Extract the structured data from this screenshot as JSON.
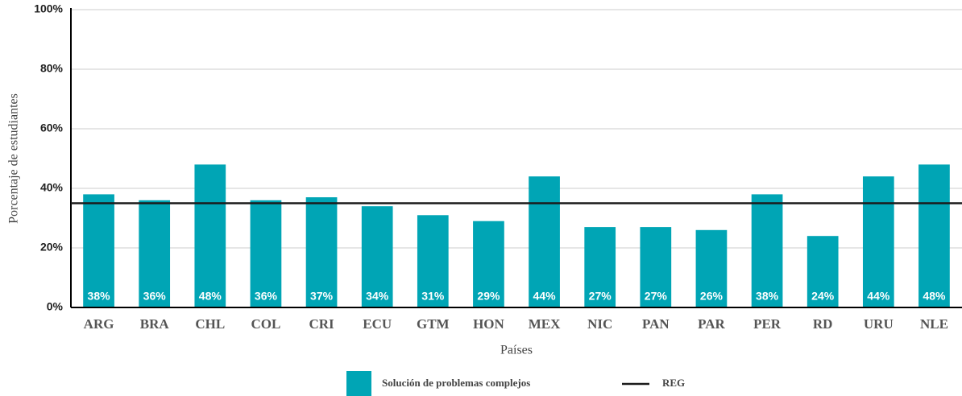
{
  "chart_data": {
    "type": "bar",
    "categories": [
      "ARG",
      "BRA",
      "CHL",
      "COL",
      "CRI",
      "ECU",
      "GTM",
      "HON",
      "MEX",
      "NIC",
      "PAN",
      "PAR",
      "PER",
      "RD",
      "URU",
      "NLE"
    ],
    "series": [
      {
        "name": "Solución de problemas complejos",
        "color": "#00a5b5",
        "values": [
          38,
          36,
          48,
          36,
          37,
          34,
          31,
          29,
          44,
          27,
          27,
          26,
          38,
          24,
          44,
          48
        ],
        "value_labels": [
          "38%",
          "36%",
          "48%",
          "36%",
          "37%",
          "34%",
          "31%",
          "29%",
          "44%",
          "27%",
          "27%",
          "26%",
          "38%",
          "24%",
          "44%",
          "48%"
        ]
      }
    ],
    "reference_line": {
      "name": "REG",
      "value": 35,
      "color": "#1a1a1a"
    },
    "ylabel": "Porcentaje de estudiantes",
    "xlabel": "Países",
    "ylim": [
      0,
      100
    ],
    "yticks": [
      {
        "value": 0,
        "label": "0%"
      },
      {
        "value": 20,
        "label": "20%"
      },
      {
        "value": 40,
        "label": "40%"
      },
      {
        "value": 60,
        "label": "60%"
      },
      {
        "value": 80,
        "label": "80%"
      },
      {
        "value": 100,
        "label": "100%"
      }
    ],
    "grid": true
  }
}
